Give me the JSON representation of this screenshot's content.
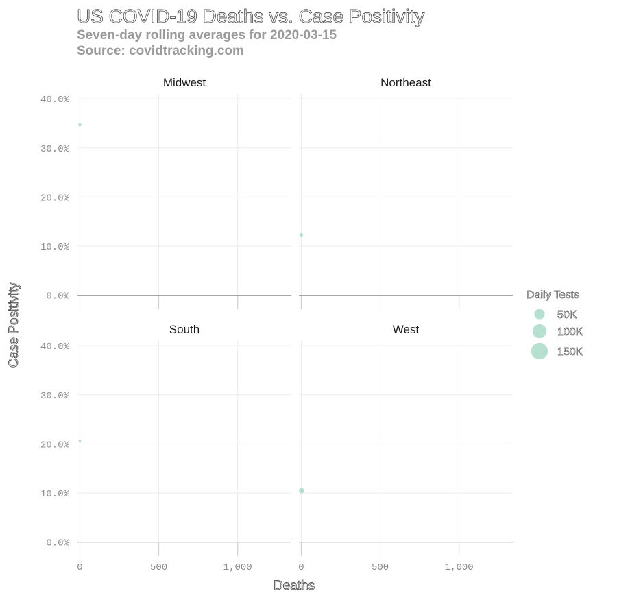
{
  "chart_data": {
    "type": "scatter",
    "title": "US COVID-19 Deaths vs. Case Positivity",
    "subtitle": "Seven-day rolling averages for 2020-03-15",
    "caption": "Source: covidtracking.com",
    "xlabel": "Deaths",
    "ylabel": "Case Positivity",
    "xlim": [
      -15,
      1340
    ],
    "ylim": [
      -0.02,
      0.41
    ],
    "x_ticks": [
      0,
      500,
      1000
    ],
    "x_tick_labels": [
      "0",
      "500",
      "1,000"
    ],
    "y_ticks": [
      0,
      0.1,
      0.2,
      0.3,
      0.4
    ],
    "y_tick_labels": [
      "0.0%",
      "10.0%",
      "20.0%",
      "30.0%",
      "40.0%"
    ],
    "grid": true,
    "point_color": "#a9dcc9",
    "facets": [
      {
        "name": "Midwest",
        "points": [
          {
            "x": 0,
            "y": 0.347,
            "tests": 1500
          }
        ]
      },
      {
        "name": "Northeast",
        "points": [
          {
            "x": 0,
            "y": 0.123,
            "tests": 3000
          }
        ]
      },
      {
        "name": "South",
        "points": [
          {
            "x": 0,
            "y": 0.206,
            "tests": 800
          }
        ]
      },
      {
        "name": "West",
        "points": [
          {
            "x": 2,
            "y": 0.105,
            "tests": 9000
          }
        ]
      }
    ],
    "legend": {
      "title": "Daily Tests",
      "position": "right",
      "items": [
        {
          "label": "50K",
          "value": 50000
        },
        {
          "label": "100K",
          "value": 100000
        },
        {
          "label": "150K",
          "value": 150000
        }
      ]
    }
  }
}
